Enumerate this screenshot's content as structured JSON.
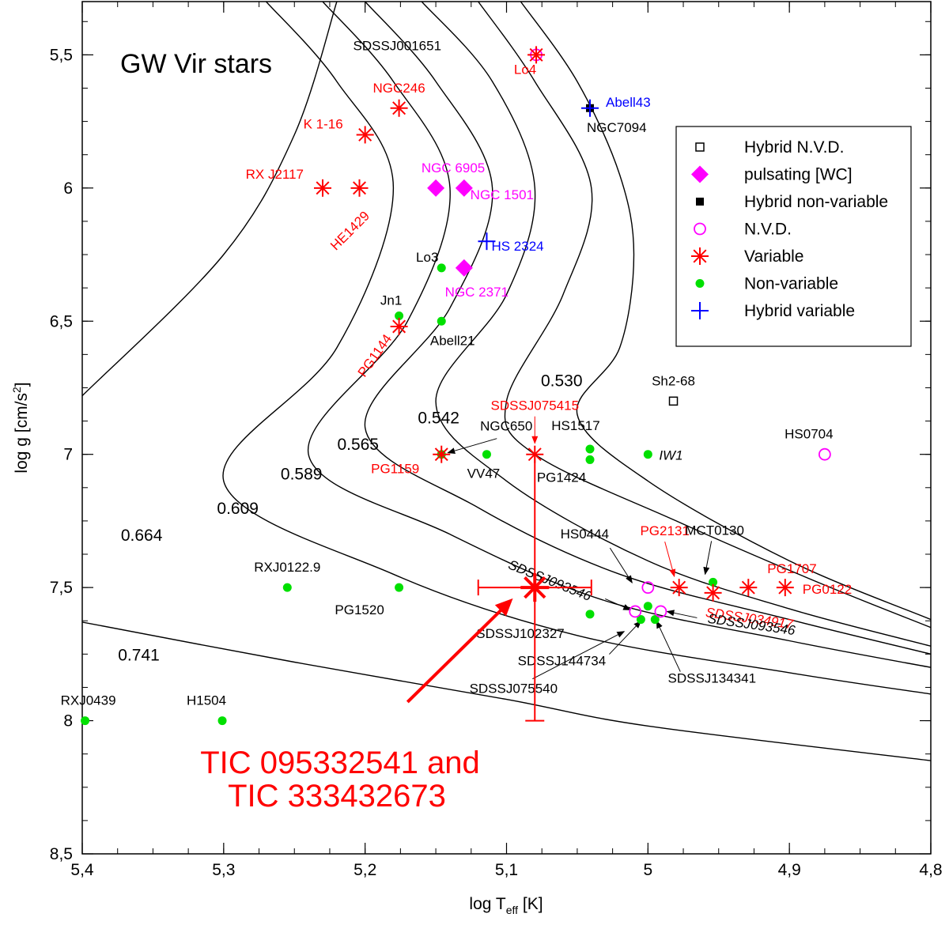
{
  "chart_data": {
    "type": "scatter",
    "title": "GW Vir stars",
    "xlabel": "log T_eff [K]",
    "ylabel": "log g [cm/s^2]",
    "xlim": [
      5.4,
      4.8
    ],
    "ylim": [
      5.3,
      8.5
    ],
    "x_ticks": [
      "5,4",
      "5,3",
      "5,2",
      "5,1",
      "5",
      "4,9",
      "4,8"
    ],
    "y_ticks": [
      "5,5",
      "6",
      "6,5",
      "7",
      "7,5",
      "8",
      "8,5"
    ],
    "colors": {
      "variable": "#ff0000",
      "non_variable": "#00e000",
      "nvd": "#ff00ff",
      "pulsating_wc": "#ff00ff",
      "hybrid_variable": "#0000ff",
      "hybrid_nv": "#000000",
      "label_black": "#000000",
      "label_red": "#ff0000",
      "label_magenta": "#ff00ff",
      "label_blue": "#0000ff"
    },
    "legend": [
      {
        "label": "Hybrid N.V.D.",
        "marker": "open-square"
      },
      {
        "label": "pulsating [WC]",
        "marker": "diamond"
      },
      {
        "label": "Hybrid non-variable",
        "marker": "filled-square"
      },
      {
        "label": "N.V.D.",
        "marker": "open-circle"
      },
      {
        "label": "Variable",
        "marker": "asterisk"
      },
      {
        "label": "Non-variable",
        "marker": "dot"
      },
      {
        "label": "Hybrid variable",
        "marker": "plus"
      }
    ],
    "tracks": [
      {
        "mass": "0.530",
        "points": [
          [
            5.09,
            5.3
          ],
          [
            5.05,
            5.6
          ],
          [
            5.02,
            5.95
          ],
          [
            5.01,
            6.25
          ],
          [
            5.02,
            6.6
          ],
          [
            5.05,
            6.85
          ],
          [
            5.0,
            7.1
          ],
          [
            4.9,
            7.4
          ],
          [
            4.8,
            7.62
          ]
        ]
      },
      {
        "mass": "0.542",
        "points": [
          [
            5.12,
            5.3
          ],
          [
            5.08,
            5.6
          ],
          [
            5.04,
            6.0
          ],
          [
            5.06,
            6.4
          ],
          [
            5.1,
            6.8
          ],
          [
            5.08,
            7.0
          ],
          [
            4.98,
            7.25
          ],
          [
            4.88,
            7.48
          ],
          [
            4.8,
            7.65
          ]
        ]
      },
      {
        "mass": "0.565",
        "points": [
          [
            5.16,
            5.3
          ],
          [
            5.11,
            5.6
          ],
          [
            5.08,
            6.0
          ],
          [
            5.1,
            6.4
          ],
          [
            5.15,
            6.8
          ],
          [
            5.1,
            7.1
          ],
          [
            5.0,
            7.4
          ],
          [
            4.9,
            7.58
          ],
          [
            4.8,
            7.72
          ]
        ]
      },
      {
        "mass": "0.589",
        "points": [
          [
            5.2,
            5.3
          ],
          [
            5.15,
            5.6
          ],
          [
            5.11,
            6.0
          ],
          [
            5.14,
            6.45
          ],
          [
            5.2,
            6.9
          ],
          [
            5.12,
            7.2
          ],
          [
            5.02,
            7.45
          ],
          [
            4.9,
            7.62
          ],
          [
            4.8,
            7.75
          ]
        ]
      },
      {
        "mass": "0.609",
        "points": [
          [
            5.23,
            5.3
          ],
          [
            5.18,
            5.6
          ],
          [
            5.14,
            6.0
          ],
          [
            5.17,
            6.5
          ],
          [
            5.24,
            7.0
          ],
          [
            5.14,
            7.3
          ],
          [
            5.03,
            7.55
          ],
          [
            4.9,
            7.7
          ],
          [
            4.8,
            7.8
          ]
        ]
      },
      {
        "mass": "0.664",
        "points": [
          [
            5.27,
            5.3
          ],
          [
            5.22,
            5.6
          ],
          [
            5.18,
            6.0
          ],
          [
            5.22,
            6.6
          ],
          [
            5.3,
            7.1
          ],
          [
            5.18,
            7.45
          ],
          [
            5.05,
            7.68
          ],
          [
            4.9,
            7.82
          ],
          [
            4.8,
            7.9
          ]
        ]
      },
      {
        "mass": "0.741",
        "points": [
          [
            5.4,
            6.78
          ],
          [
            5.3,
            6.25
          ],
          [
            5.25,
            5.8
          ],
          [
            5.22,
            5.3
          ]
        ]
      },
      {
        "mass": "",
        "points": [
          [
            5.4,
            7.63
          ],
          [
            5.25,
            7.78
          ],
          [
            5.1,
            7.92
          ],
          [
            5.0,
            8.02
          ],
          [
            4.8,
            8.15
          ]
        ]
      }
    ],
    "series": [
      {
        "name": "Variable",
        "points": [
          {
            "label": "NGC246",
            "x": 5.176,
            "y": 5.7
          },
          {
            "label": "K 1-16",
            "x": 5.2,
            "y": 5.8
          },
          {
            "label": "RX J2117",
            "x": 5.23,
            "y": 6.0
          },
          {
            "label": "HE1429",
            "x": 5.204,
            "y": 6.0
          },
          {
            "label": "PG1144",
            "x": 5.176,
            "y": 6.52
          },
          {
            "label": "PG1159",
            "x": 5.146,
            "y": 7.0
          },
          {
            "label": "SDSSJ075415",
            "x": 5.08,
            "y": 7.0
          },
          {
            "label": "PG2131",
            "x": 4.978,
            "y": 7.5
          },
          {
            "label": "PG1707",
            "x": 4.929,
            "y": 7.5
          },
          {
            "label": "PG0122",
            "x": 4.903,
            "y": 7.5
          },
          {
            "label": "SDSSJ034917",
            "x": 4.954,
            "y": 7.52
          },
          {
            "label": "Lo4",
            "x": 5.079,
            "y": 5.5
          }
        ]
      },
      {
        "name": "Non-variable",
        "points": [
          {
            "label": "Lo3",
            "x": 5.146,
            "y": 6.3
          },
          {
            "label": "Jn1",
            "x": 5.176,
            "y": 6.48
          },
          {
            "label": "Abell21",
            "x": 5.146,
            "y": 6.5
          },
          {
            "label": "NGC650",
            "x": 5.146,
            "y": 7.0
          },
          {
            "label": "VV47",
            "x": 5.114,
            "y": 7.0
          },
          {
            "label": "HS1517",
            "x": 5.041,
            "y": 6.98
          },
          {
            "label": "PG1424",
            "x": 5.041,
            "y": 7.02
          },
          {
            "label": "IW1",
            "x": 5.0,
            "y": 7.0
          },
          {
            "label": "MCT0130",
            "x": 4.954,
            "y": 7.48
          },
          {
            "label": "RXJ0122.9",
            "x": 5.255,
            "y": 7.5
          },
          {
            "label": "PG1520",
            "x": 5.176,
            "y": 7.5
          },
          {
            "label": "SDSSJ102327",
            "x": 5.041,
            "y": 7.6
          },
          {
            "label": "SDSSJ144734",
            "x": 5.005,
            "y": 7.62
          },
          {
            "label": "SDSSJ134341",
            "x": 4.995,
            "y": 7.62
          },
          {
            "label": "SDSSJ075540",
            "x": 5.0,
            "y": 7.57
          },
          {
            "label": "RXJ0439",
            "x": 5.398,
            "y": 8.0
          },
          {
            "label": "H1504",
            "x": 5.301,
            "y": 8.0
          }
        ]
      },
      {
        "name": "N.V.D.",
        "points": [
          {
            "label": "HS0704",
            "x": 4.875,
            "y": 7.0
          },
          {
            "label": "HS0444",
            "x": 5.0,
            "y": 7.5
          },
          {
            "label": "SDSSJ093546",
            "x": 5.009,
            "y": 7.59
          },
          {
            "label": "SDSSJ093546",
            "x": 4.991,
            "y": 7.59
          },
          {
            "label": "SDSSJ001651",
            "x": 5.079,
            "y": 5.5
          }
        ]
      },
      {
        "name": "pulsating [WC]",
        "points": [
          {
            "label": "NGC 6905",
            "x": 5.15,
            "y": 6.0
          },
          {
            "label": "NGC 1501",
            "x": 5.13,
            "y": 6.0
          },
          {
            "label": "NGC 2371",
            "x": 5.13,
            "y": 6.3
          }
        ]
      },
      {
        "name": "Hybrid variable",
        "points": [
          {
            "label": "Abell43",
            "x": 5.041,
            "y": 5.7
          },
          {
            "label": "HS 2324",
            "x": 5.114,
            "y": 6.2
          }
        ]
      },
      {
        "name": "Hybrid non-variable",
        "points": [
          {
            "label": "NGC7094",
            "x": 5.041,
            "y": 5.7
          }
        ]
      },
      {
        "name": "Hybrid N.V.D.",
        "points": [
          {
            "label": "Sh2-68",
            "x": 4.982,
            "y": 6.8
          }
        ]
      }
    ],
    "target": {
      "label_line1": "TIC 095332541 and",
      "label_line2": "TIC 333432673",
      "x": 5.08,
      "y": 7.5,
      "x_err": [
        5.12,
        5.04
      ],
      "y_err": [
        7.0,
        8.0
      ]
    }
  }
}
